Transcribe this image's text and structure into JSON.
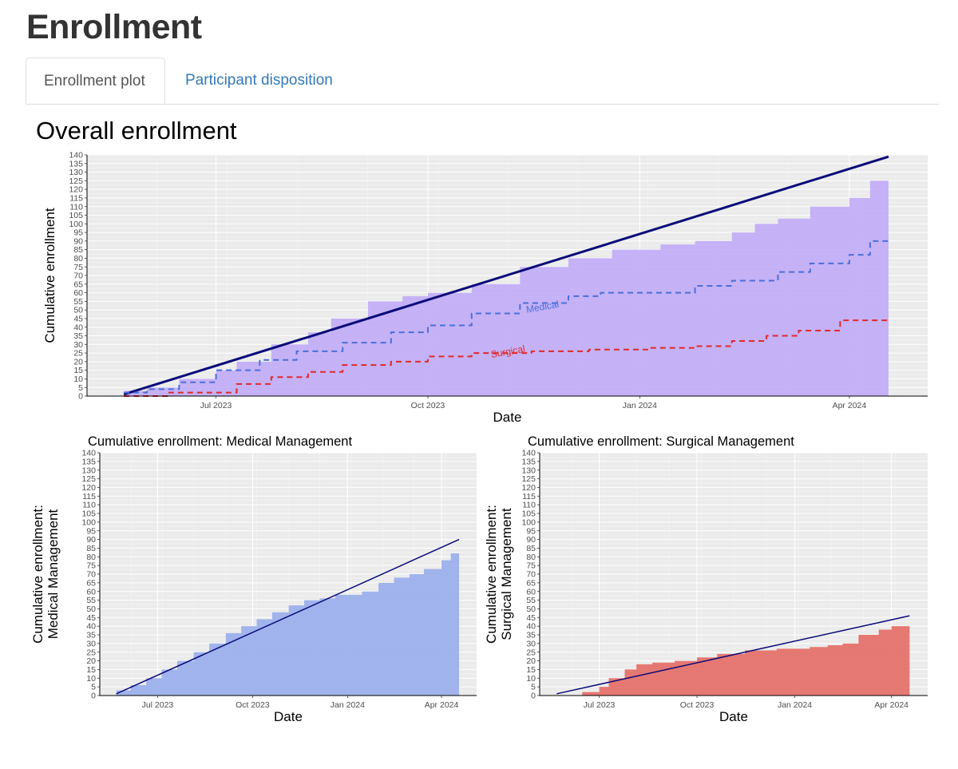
{
  "page": {
    "title": "Enrollment",
    "tabs": [
      {
        "label": "Enrollment plot",
        "active": true
      },
      {
        "label": "Participant disposition",
        "active": false
      }
    ],
    "section_title": "Overall enrollment"
  },
  "colors": {
    "panel_bg": "#ebebeb",
    "grid": "#ffffff",
    "overall_fill": "#c3aef7",
    "medical_fill": "#9cb0ec",
    "surgical_fill": "#e5726c",
    "target_line": "#0a0a7a",
    "medical_line": "#4a6fdc",
    "surgical_line": "#e02a2a"
  },
  "chart_data": [
    {
      "id": "overall",
      "type": "area",
      "title": "",
      "xlabel": "Date",
      "ylabel": "Cumulative enrollment",
      "xlim": [
        "2023-05-06",
        "2024-05-05"
      ],
      "ylim": [
        0,
        140
      ],
      "x_ticks": [
        "2023-07-01",
        "2023-10-01",
        "2024-01-01",
        "2024-04-01"
      ],
      "x_tick_labels": [
        "Jul 2023",
        "Oct 2023",
        "Jan 2024",
        "Apr 2024"
      ],
      "y_ticks": [
        0,
        5,
        10,
        15,
        20,
        25,
        30,
        35,
        40,
        45,
        50,
        55,
        60,
        65,
        70,
        75,
        80,
        85,
        90,
        95,
        100,
        105,
        110,
        115,
        120,
        125,
        130,
        135,
        140
      ],
      "grid": true,
      "series": [
        {
          "kind": "area",
          "style": "step",
          "color": "#c3aef7",
          "x": [
            "2023-05-22",
            "2023-06-01",
            "2023-06-15",
            "2023-07-01",
            "2023-07-10",
            "2023-07-25",
            "2023-08-10",
            "2023-08-20",
            "2023-09-05",
            "2023-09-20",
            "2023-10-01",
            "2023-10-20",
            "2023-11-10",
            "2023-12-01",
            "2023-12-20",
            "2024-01-10",
            "2024-01-25",
            "2024-02-10",
            "2024-02-20",
            "2024-03-01",
            "2024-03-15",
            "2024-04-01",
            "2024-04-10",
            "2024-04-18"
          ],
          "y": [
            3,
            5,
            10,
            15,
            20,
            30,
            37,
            45,
            55,
            58,
            60,
            65,
            75,
            80,
            85,
            88,
            90,
            95,
            100,
            103,
            110,
            115,
            125,
            135
          ]
        },
        {
          "kind": "line",
          "name": "",
          "style": "solid",
          "color": "#0a0a7a",
          "width": 3,
          "x": [
            "2023-05-22",
            "2024-04-18"
          ],
          "y": [
            1,
            139
          ]
        },
        {
          "kind": "line",
          "name": "Medical",
          "style": "dashed-step",
          "color": "#4a6fdc",
          "width": 2,
          "x": [
            "2023-05-22",
            "2023-06-01",
            "2023-06-15",
            "2023-07-01",
            "2023-07-20",
            "2023-08-05",
            "2023-08-25",
            "2023-09-15",
            "2023-10-01",
            "2023-10-20",
            "2023-11-10",
            "2023-12-01",
            "2023-12-15",
            "2024-01-10",
            "2024-01-25",
            "2024-02-10",
            "2024-03-01",
            "2024-03-15",
            "2024-04-01",
            "2024-04-10",
            "2024-04-18"
          ],
          "y": [
            2,
            4,
            8,
            15,
            21,
            26,
            31,
            37,
            41,
            48,
            54,
            58,
            60,
            60,
            64,
            67,
            72,
            77,
            82,
            90,
            90
          ]
        },
        {
          "kind": "line",
          "name": "Surgical",
          "style": "dashed-step",
          "color": "#e02a2a",
          "width": 2,
          "x": [
            "2023-05-22",
            "2023-06-10",
            "2023-07-10",
            "2023-07-25",
            "2023-08-10",
            "2023-08-25",
            "2023-09-15",
            "2023-10-01",
            "2023-10-20",
            "2023-11-15",
            "2023-12-10",
            "2024-01-05",
            "2024-01-25",
            "2024-02-10",
            "2024-02-25",
            "2024-03-10",
            "2024-03-28",
            "2024-04-18"
          ],
          "y": [
            0,
            2,
            7,
            11,
            14,
            18,
            20,
            23,
            25,
            26,
            27,
            28,
            29,
            32,
            35,
            38,
            44,
            45
          ]
        }
      ],
      "annotations": [
        {
          "text": "Medical",
          "x": "2023-11-20",
          "y": 50,
          "color": "#4a6fdc"
        },
        {
          "text": "Surgical",
          "x": "2023-11-05",
          "y": 24,
          "color": "#e02a2a"
        }
      ]
    },
    {
      "id": "medical",
      "type": "area",
      "title": "Cumulative enrollment: Medical Management",
      "xlabel": "Date",
      "ylabel": "Cumulative enrollment:\nMedical Management",
      "xlim": [
        "2023-05-06",
        "2024-05-05"
      ],
      "ylim": [
        0,
        140
      ],
      "x_ticks": [
        "2023-07-01",
        "2023-10-01",
        "2024-01-01",
        "2024-04-01"
      ],
      "x_tick_labels": [
        "Jul 2023",
        "Oct 2023",
        "Jan 2024",
        "Apr 2024"
      ],
      "y_ticks": [
        0,
        5,
        10,
        15,
        20,
        25,
        30,
        35,
        40,
        45,
        50,
        55,
        60,
        65,
        70,
        75,
        80,
        85,
        90,
        95,
        100,
        105,
        110,
        115,
        120,
        125,
        130,
        135,
        140
      ],
      "grid": true,
      "series": [
        {
          "kind": "area",
          "style": "step",
          "color": "#9cb0ec",
          "x": [
            "2023-05-22",
            "2023-06-05",
            "2023-06-20",
            "2023-07-05",
            "2023-07-20",
            "2023-08-05",
            "2023-08-20",
            "2023-09-05",
            "2023-09-20",
            "2023-10-05",
            "2023-10-20",
            "2023-11-05",
            "2023-11-20",
            "2023-12-05",
            "2023-12-20",
            "2024-01-15",
            "2024-01-31",
            "2024-02-15",
            "2024-03-01",
            "2024-03-15",
            "2024-04-01",
            "2024-04-10",
            "2024-04-18"
          ],
          "y": [
            3,
            6,
            10,
            15,
            20,
            25,
            30,
            36,
            40,
            44,
            48,
            52,
            55,
            56,
            58,
            60,
            65,
            68,
            70,
            73,
            78,
            82,
            88
          ]
        },
        {
          "kind": "line",
          "name": "",
          "style": "solid",
          "color": "#0a0a7a",
          "width": 1.5,
          "x": [
            "2023-05-22",
            "2024-04-18"
          ],
          "y": [
            1,
            90
          ]
        }
      ]
    },
    {
      "id": "surgical",
      "type": "area",
      "title": "Cumulative enrollment: Surgical Management",
      "xlabel": "Date",
      "ylabel": "Cumulative enrollment:\nSurgical Management",
      "xlim": [
        "2023-05-06",
        "2024-05-05"
      ],
      "ylim": [
        0,
        140
      ],
      "x_ticks": [
        "2023-07-01",
        "2023-10-01",
        "2024-01-01",
        "2024-04-01"
      ],
      "x_tick_labels": [
        "Jul 2023",
        "Oct 2023",
        "Jan 2024",
        "Apr 2024"
      ],
      "y_ticks": [
        0,
        5,
        10,
        15,
        20,
        25,
        30,
        35,
        40,
        45,
        50,
        55,
        60,
        65,
        70,
        75,
        80,
        85,
        90,
        95,
        100,
        105,
        110,
        115,
        120,
        125,
        130,
        135,
        140
      ],
      "grid": true,
      "series": [
        {
          "kind": "area",
          "style": "step",
          "color": "#e5726c",
          "x": [
            "2023-06-15",
            "2023-07-01",
            "2023-07-10",
            "2023-07-25",
            "2023-08-05",
            "2023-08-20",
            "2023-09-10",
            "2023-10-01",
            "2023-10-20",
            "2023-11-15",
            "2023-12-15",
            "2024-01-15",
            "2024-02-01",
            "2024-02-15",
            "2024-03-01",
            "2024-03-20",
            "2024-04-01",
            "2024-04-18"
          ],
          "y": [
            2,
            5,
            10,
            15,
            18,
            19,
            20,
            22,
            24,
            26,
            27,
            28,
            29,
            30,
            35,
            38,
            40,
            44
          ]
        },
        {
          "kind": "line",
          "name": "",
          "style": "solid",
          "color": "#0a0a7a",
          "width": 1.5,
          "x": [
            "2023-05-22",
            "2024-04-18"
          ],
          "y": [
            1,
            46
          ]
        }
      ]
    }
  ]
}
